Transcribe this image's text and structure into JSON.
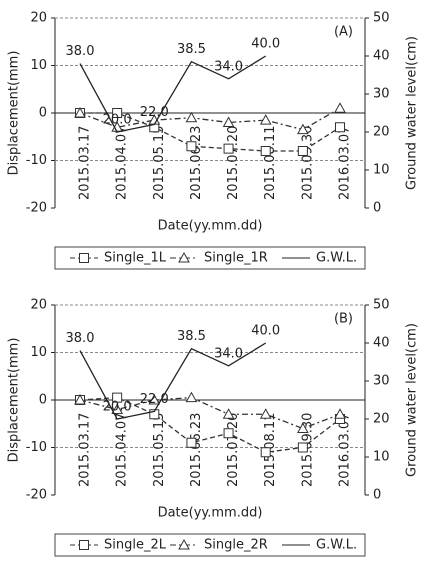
{
  "chart_data": [
    {
      "type": "line",
      "annotation": "(A)",
      "xlabel": "Date(yy.mm.dd)",
      "ylabel": "Displacement(mm)",
      "y2label": "Ground water level(cm)",
      "categories": [
        "2015.03.17",
        "2015.04.07",
        "2015.05.15",
        "2015.06.23",
        "2015.07.20",
        "2015.08.11",
        "2015.09.30",
        "2016.03.07"
      ],
      "ylim": [
        -20,
        20
      ],
      "yticks": [
        -20,
        -10,
        0,
        10,
        20
      ],
      "y2lim": [
        0,
        50
      ],
      "y2ticks": [
        0,
        10,
        20,
        30,
        40,
        50
      ],
      "series": [
        {
          "name": "Single_1L",
          "color": "#333333",
          "marker": "square",
          "linestyle": "dashed",
          "values": [
            0,
            0,
            -3,
            -7,
            -7.5,
            -8,
            -8,
            -3
          ]
        },
        {
          "name": "Single_1R",
          "color": "#333333",
          "marker": "triangle",
          "linestyle": "dashdot",
          "values": [
            0,
            -3,
            -1.5,
            -1,
            -2,
            -1.5,
            -3.5,
            1
          ]
        },
        {
          "name": "G.W.L.",
          "color": "#222222",
          "marker": "none",
          "linestyle": "solid",
          "axis": "y2",
          "values": [
            38,
            20,
            22,
            38.5,
            34,
            40,
            null,
            null
          ],
          "value_labels": [
            "38.0",
            "20.0",
            "22.0",
            "38.5",
            "34.0",
            "40.0",
            null,
            null
          ]
        }
      ]
    },
    {
      "type": "line",
      "annotation": "(B)",
      "xlabel": "Date(yy.mm.dd)",
      "ylabel": "Displacement(mm)",
      "y2label": "Ground water level(cm)",
      "categories": [
        "2015.03.17",
        "2015.04.07",
        "2015.05.15",
        "2015.06.23",
        "2015.07.20",
        "2015.08.11",
        "2015.09.30",
        "2016.03.07"
      ],
      "ylim": [
        -20,
        20
      ],
      "yticks": [
        -20,
        -10,
        0,
        10,
        20
      ],
      "y2lim": [
        0,
        50
      ],
      "y2ticks": [
        0,
        10,
        20,
        30,
        40,
        50
      ],
      "series": [
        {
          "name": "Single_2L",
          "color": "#333333",
          "marker": "square",
          "linestyle": "dashed",
          "values": [
            0,
            0.5,
            -3,
            -9,
            -7,
            -11,
            -10,
            -4
          ]
        },
        {
          "name": "Single_2R",
          "color": "#333333",
          "marker": "triangle",
          "linestyle": "dashdot",
          "values": [
            0,
            -2,
            0,
            0.5,
            -3,
            -3,
            -6,
            -3
          ]
        },
        {
          "name": "G.W.L.",
          "color": "#222222",
          "marker": "none",
          "linestyle": "solid",
          "axis": "y2",
          "values": [
            38,
            20,
            22,
            38.5,
            34,
            40,
            null,
            null
          ],
          "value_labels": [
            "38.0",
            "20.0",
            "22.0",
            "38.5",
            "34.0",
            "40.0",
            null,
            null
          ]
        }
      ]
    }
  ]
}
